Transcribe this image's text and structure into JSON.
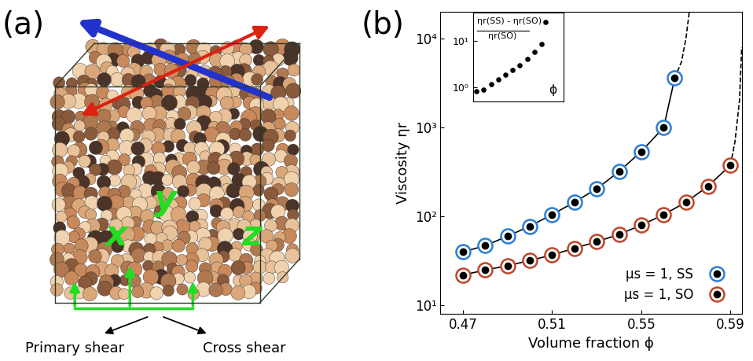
{
  "illustration": {
    "panel_label": "(a)",
    "axis_labels": [
      "x",
      "y",
      "z"
    ],
    "shear_labels": [
      "Primary shear",
      "Cross shear"
    ]
  },
  "chart_data": {
    "type": "line",
    "panel_label": "(b)",
    "xlabel": "Volume fraction ϕ",
    "ylabel": "Viscosity ηr",
    "log": "y",
    "grid": false,
    "legend": "lower right",
    "xlim": [
      0.46,
      0.595
    ],
    "xticks": [
      0.47,
      0.51,
      0.55,
      0.59
    ],
    "ylim": [
      8,
      20000
    ],
    "yticks": [
      {
        "value": 10,
        "label": "10¹"
      },
      {
        "value": 100,
        "label": "10²"
      },
      {
        "value": 1000,
        "label": "10³"
      },
      {
        "value": 10000,
        "label": "10⁴"
      }
    ],
    "series": [
      {
        "name": "μs = 1, SS",
        "color": "#2a7fd4",
        "marker": "o",
        "line_style": "solid",
        "x": [
          0.47,
          0.48,
          0.49,
          0.5,
          0.51,
          0.52,
          0.53,
          0.54,
          0.55,
          0.56,
          0.565
        ],
        "values": [
          40,
          47,
          60,
          78,
          105,
          145,
          205,
          320,
          540,
          1000,
          3600
        ]
      },
      {
        "name": "μs = 1, SO",
        "color": "#c0462a",
        "marker": "o",
        "line_style": "solid",
        "x": [
          0.47,
          0.48,
          0.49,
          0.5,
          0.51,
          0.52,
          0.53,
          0.54,
          0.55,
          0.56,
          0.57,
          0.58,
          0.59
        ],
        "values": [
          22,
          25,
          28,
          32,
          37,
          44,
          52,
          63,
          80,
          105,
          145,
          220,
          380
        ]
      },
      {
        "color": "black",
        "line_style": "dashed",
        "x": [
          0.565,
          0.568,
          0.57,
          0.5715
        ],
        "values": [
          3600,
          5500,
          10000,
          20000
        ]
      },
      {
        "color": "black",
        "line_style": "dashed",
        "x": [
          0.59,
          0.592,
          0.594,
          0.595
        ],
        "values": [
          380,
          700,
          2000,
          8000
        ]
      }
    ],
    "inset": {
      "type": "scatter",
      "log": "y",
      "tick_labels": "y",
      "label_numerator": "ηr(SS) - ηr(SO)",
      "label_denominator": "ηr(SO)",
      "xlabel": "ϕ",
      "xlim": [
        0.465,
        0.59
      ],
      "xticks": [],
      "ylim": [
        0.5,
        40
      ],
      "yticks": [
        {
          "value": 1,
          "label": "10⁰"
        },
        {
          "value": 10,
          "label": "10¹"
        }
      ],
      "x": [
        0.47,
        0.48,
        0.49,
        0.5,
        0.51,
        0.52,
        0.53,
        0.54,
        0.55,
        0.56,
        0.565
      ],
      "values": [
        0.82,
        0.88,
        1.14,
        1.44,
        1.84,
        2.3,
        2.94,
        4.1,
        5.8,
        8.5,
        25
      ]
    }
  }
}
